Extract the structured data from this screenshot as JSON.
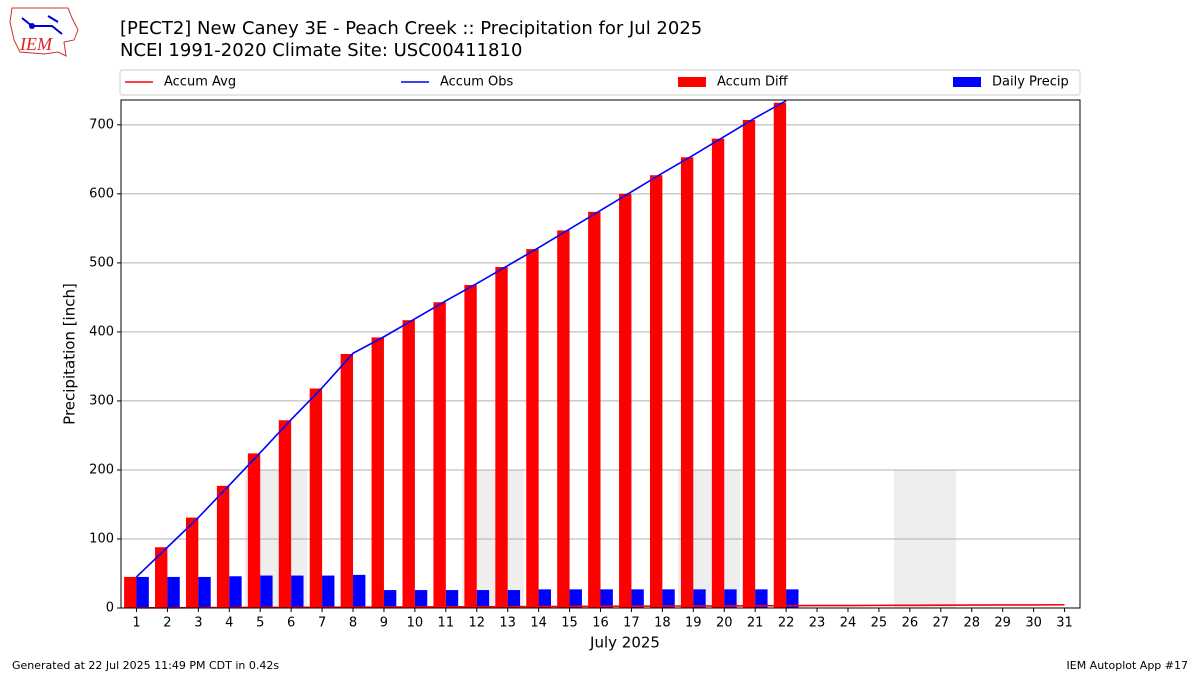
{
  "logo": "IEM",
  "footer_left": "Generated at 22 Jul 2025 11:49 PM CDT in 0.42s",
  "footer_right": "IEM Autoplot App #17",
  "chart_data": {
    "type": "bar",
    "title": "[PECT2] New Caney 3E - Peach Creek :: Precipitation for Jul 2025",
    "subtitle": "NCEI 1991-2020 Climate Site: USC00411810",
    "y_label": "Precipitation [inch]",
    "x_label": "July 2025",
    "categories": [
      "1",
      "2",
      "3",
      "4",
      "5",
      "6",
      "7",
      "8",
      "9",
      "10",
      "11",
      "12",
      "13",
      "14",
      "15",
      "16",
      "17",
      "18",
      "19",
      "20",
      "21",
      "22",
      "23",
      "24",
      "25",
      "26",
      "27",
      "28",
      "29",
      "30",
      "31"
    ],
    "series": [
      {
        "name": "Accum Avg",
        "kind": "line",
        "color": "#ff0000",
        "values": [
          0.2,
          0.3,
          0.5,
          0.6,
          0.8,
          0.9,
          1.1,
          1.2,
          1.4,
          1.5,
          1.7,
          1.8,
          2.0,
          2.1,
          2.3,
          2.4,
          2.6,
          2.7,
          2.9,
          3.0,
          3.2,
          3.3,
          3.5,
          3.6,
          3.8,
          3.9,
          4.1,
          4.2,
          4.4,
          4.5,
          4.7
        ]
      },
      {
        "name": "Accum Obs",
        "kind": "line",
        "color": "#0000ff",
        "values": [
          45,
          88,
          131,
          178,
          225,
          273,
          319,
          369,
          393,
          419,
          445,
          470,
          496,
          522,
          549,
          576,
          603,
          630,
          656,
          683,
          710,
          735,
          null,
          null,
          null,
          null,
          null,
          null,
          null,
          null,
          null
        ]
      },
      {
        "name": "Accum Diff",
        "kind": "bar",
        "color": "#ff0000",
        "values": [
          45,
          88,
          131,
          177,
          224,
          272,
          318,
          368,
          392,
          417,
          443,
          468,
          494,
          520,
          547,
          574,
          600,
          627,
          653,
          680,
          707,
          732,
          null,
          null,
          null,
          null,
          null,
          null,
          null,
          null,
          null
        ]
      },
      {
        "name": "Daily Precip",
        "kind": "bar",
        "color": "#0000ff",
        "values": [
          45,
          45,
          45,
          46,
          47,
          47,
          47,
          48,
          26,
          26,
          26,
          26,
          26,
          27,
          27,
          27,
          27,
          27,
          27,
          27,
          27,
          27,
          null,
          null,
          null,
          null,
          null,
          null,
          null,
          null,
          null
        ]
      }
    ],
    "ylim": [
      0,
      736
    ],
    "yticks": [
      0,
      100,
      200,
      300,
      400,
      500,
      600,
      700
    ],
    "grid": true
  }
}
